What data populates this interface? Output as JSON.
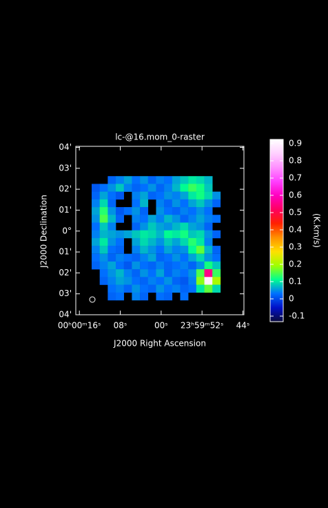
{
  "chart_data": {
    "type": "heatmap",
    "title": "lc-@16.mom_0-raster",
    "x_label": "J2000 Right Ascension",
    "y_label": "J2000 Declination",
    "colorbar_label": "(K.km/s)",
    "xlim": [
      16.7,
      -16.2
    ],
    "xticks": [
      {
        "value": 16,
        "label": "00ʰ00ᵐ16ˢ"
      },
      {
        "value": 8,
        "label": "08ˢ"
      },
      {
        "value": 0,
        "label": "00ˢ"
      },
      {
        "value": -8,
        "label": "23ʰ59ᵐ52ˢ"
      },
      {
        "value": -16,
        "label": "44ˢ"
      }
    ],
    "ylim": [
      -4.0,
      4.05
    ],
    "yticks": [
      {
        "value": 4,
        "label": "04'"
      },
      {
        "value": 3,
        "label": "03'"
      },
      {
        "value": 2,
        "label": "02'"
      },
      {
        "value": 1,
        "label": "01'"
      },
      {
        "value": 0,
        "label": "0°"
      },
      {
        "value": -1,
        "label": "01'"
      },
      {
        "value": -2,
        "label": "02'"
      },
      {
        "value": -3,
        "label": "03'"
      },
      {
        "value": -4,
        "label": "04'"
      }
    ],
    "zlim": [
      -0.132,
      0.924
    ],
    "zticks": [
      0.9,
      0.8,
      0.7,
      0.6,
      0.5,
      0.4,
      0.3,
      0.2,
      0.1,
      0,
      -0.1
    ],
    "colormap": [
      "#0a0a3c",
      "#0010c8",
      "#0070ff",
      "#00ff90",
      "#a0ff00",
      "#ffe000",
      "#ff9000",
      "#ff2000",
      "#ff0060",
      "#ff00c0",
      "#ff40ff",
      "#ff90ff",
      "#ffd0ff",
      "#ffffff"
    ],
    "x": [
      12.81,
      11.24,
      9.66,
      8.09,
      6.51,
      4.94,
      3.36,
      1.79,
      0.21,
      -1.36,
      -2.94,
      -4.51,
      -6.09,
      -7.66,
      -9.24,
      -10.81
    ],
    "y": [
      2.44,
      2.07,
      1.7,
      1.33,
      0.96,
      0.59,
      0.22,
      -0.15,
      -0.52,
      -0.89,
      -1.27,
      -1.64,
      -2.01,
      -2.38,
      -2.75,
      -3.12
    ],
    "z": [
      [
        null,
        null,
        0.02,
        0.04,
        0.06,
        0.03,
        0.05,
        0.02,
        0.04,
        0.03,
        0.06,
        0.08,
        0.1,
        0.09,
        0.07,
        null
      ],
      [
        0.01,
        0.03,
        0.05,
        0.08,
        0.04,
        0.02,
        0.03,
        0.05,
        0.02,
        0.04,
        0.07,
        0.11,
        0.14,
        0.12,
        0.08,
        null
      ],
      [
        0.02,
        0.06,
        0.03,
        0.01,
        null,
        0.04,
        0.06,
        0.02,
        0.03,
        0.05,
        0.04,
        0.06,
        0.1,
        0.12,
        0.09,
        0.05
      ],
      [
        0.04,
        0.09,
        0.02,
        null,
        null,
        0.03,
        0.07,
        null,
        0.04,
        0.02,
        0.05,
        0.03,
        0.06,
        0.08,
        0.05,
        0.02
      ],
      [
        0.06,
        0.13,
        0.05,
        0.01,
        0.03,
        0.05,
        0.02,
        null,
        0.05,
        0.03,
        0.02,
        0.04,
        0.03,
        0.05,
        0.03,
        null
      ],
      [
        0.05,
        0.15,
        0.07,
        0.02,
        null,
        0.04,
        0.03,
        0.06,
        0.04,
        0.07,
        0.05,
        0.02,
        0.04,
        0.06,
        0.04,
        0.03
      ],
      [
        0.03,
        0.08,
        0.04,
        null,
        null,
        0.02,
        0.05,
        0.08,
        0.06,
        0.05,
        0.07,
        0.09,
        0.06,
        0.05,
        0.02,
        null
      ],
      [
        0.04,
        0.07,
        0.06,
        0.05,
        0.06,
        0.08,
        0.1,
        0.09,
        0.07,
        0.11,
        0.1,
        0.12,
        0.08,
        0.09,
        0.05,
        0.02
      ],
      [
        0.06,
        0.1,
        0.05,
        0.03,
        null,
        0.06,
        0.09,
        0.07,
        0.05,
        0.08,
        0.06,
        0.09,
        0.13,
        0.1,
        0.04,
        null
      ],
      [
        0.04,
        0.08,
        0.03,
        0.02,
        null,
        0.04,
        0.07,
        0.05,
        0.03,
        0.06,
        0.04,
        0.05,
        0.11,
        0.16,
        0.07,
        0.02
      ],
      [
        0.03,
        0.05,
        0.02,
        0.04,
        0.03,
        0.02,
        0.04,
        0.06,
        0.02,
        0.03,
        0.05,
        0.03,
        0.06,
        0.09,
        0.05,
        0.03
      ],
      [
        0.02,
        0.04,
        0.06,
        0.03,
        0.01,
        0.05,
        0.03,
        0.02,
        0.04,
        0.02,
        0.03,
        0.04,
        0.02,
        0.05,
        0.12,
        0.08
      ],
      [
        null,
        0.03,
        0.05,
        0.07,
        0.04,
        0.02,
        0.05,
        0.03,
        0.06,
        0.02,
        0.04,
        0.03,
        0.05,
        0.15,
        0.55,
        0.14
      ],
      [
        null,
        0.02,
        0.04,
        0.06,
        0.05,
        0.03,
        0.02,
        0.04,
        0.03,
        0.05,
        0.02,
        0.01,
        0.04,
        0.18,
        0.9,
        0.2
      ],
      [
        null,
        null,
        0.03,
        0.04,
        0.02,
        0.05,
        0.03,
        0.02,
        0.05,
        0.03,
        0.04,
        0.02,
        0.03,
        0.1,
        0.16,
        0.09
      ],
      [
        null,
        null,
        0.02,
        0.03,
        null,
        0.04,
        0.02,
        null,
        0.03,
        0.02,
        null,
        0.03,
        null,
        null,
        null,
        null
      ]
    ]
  }
}
